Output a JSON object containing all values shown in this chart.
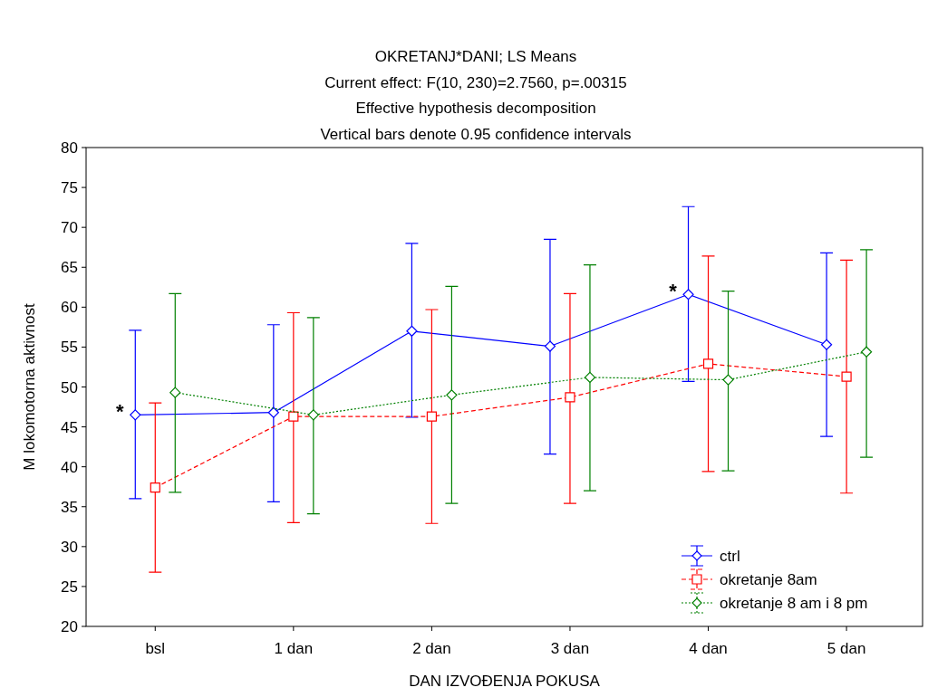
{
  "chart_data": {
    "type": "line",
    "title": "OKRETANJ*DANI; LS Means",
    "subtitle": "Current effect: F(10, 230)=2.7560, p=.00315\nEffective hypothesis decomposition\nVertical bars denote 0.95 confidence intervals",
    "xlabel": "DAN IZVOĐENJA POKUSA",
    "ylabel": "M lokomotorna aktivnost",
    "categories": [
      "bsl",
      "1 dan",
      "2 dan",
      "3 dan",
      "4 dan",
      "5 dan"
    ],
    "ylim": [
      20,
      80
    ],
    "yticks": [
      20,
      25,
      30,
      35,
      40,
      45,
      50,
      55,
      60,
      65,
      70,
      75,
      80
    ],
    "grid": false,
    "legend": "bottom right",
    "series": [
      {
        "name": "ctrl",
        "color": "#0000ff",
        "marker": "diamond",
        "line_style": "solid",
        "values": [
          46.5,
          46.8,
          57.0,
          55.1,
          61.6,
          55.3
        ],
        "errors": [
          [
            36.0,
            57.1
          ],
          [
            35.6,
            57.8
          ],
          [
            46.2,
            68.0
          ],
          [
            41.6,
            68.5
          ],
          [
            50.7,
            72.6
          ],
          [
            43.8,
            66.8
          ]
        ]
      },
      {
        "name": "okretanje 8am",
        "color": "#ff0000",
        "marker": "square",
        "line_style": "dashed",
        "values": [
          37.4,
          46.3,
          46.3,
          48.7,
          52.9,
          51.3
        ],
        "errors": [
          [
            26.8,
            48.0
          ],
          [
            33.0,
            59.3
          ],
          [
            32.9,
            59.7
          ],
          [
            35.4,
            61.7
          ],
          [
            39.4,
            66.4
          ],
          [
            36.7,
            65.9
          ]
        ]
      },
      {
        "name": "okretanje 8 am i 8 pm",
        "color": "#008000",
        "marker": "diamond",
        "line_style": "dotted",
        "values": [
          49.3,
          46.5,
          49.0,
          51.2,
          50.9,
          54.4
        ],
        "errors": [
          [
            36.8,
            61.7
          ],
          [
            34.1,
            58.7
          ],
          [
            35.4,
            62.6
          ],
          [
            37.0,
            65.3
          ],
          [
            39.5,
            62.0
          ],
          [
            41.2,
            67.2
          ]
        ]
      }
    ],
    "annotations": [
      {
        "text": "*",
        "x": "bsl",
        "y": 46.5
      },
      {
        "text": "*",
        "x": "4 dan",
        "y": 61.6
      }
    ]
  }
}
